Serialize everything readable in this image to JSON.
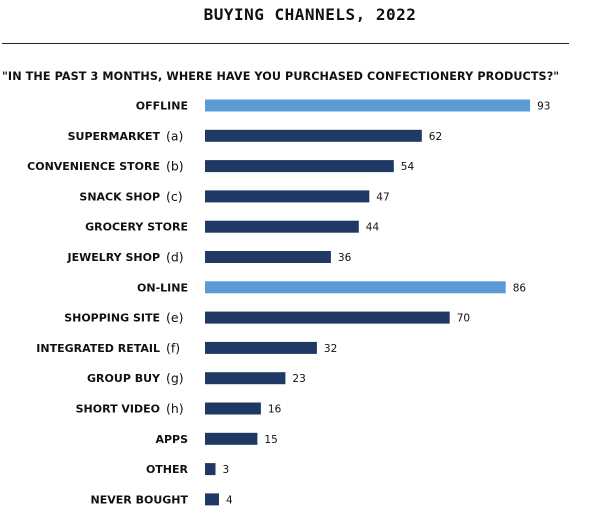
{
  "chart_data": {
    "type": "bar",
    "orientation": "horizontal",
    "title": "BUYING CHANNELS, 2022",
    "subtitle": "\"IN THE PAST 3 MONTHS, WHERE HAVE YOU PURCHASED CONFECTIONERY PRODUCTS?\"",
    "xlim": [
      0,
      100
    ],
    "grid": false,
    "colors": {
      "highlight": "#5b9bd5",
      "default": "#1f3864"
    },
    "categories": [
      {
        "label": "OFFLINE",
        "note": "",
        "value": 93,
        "highlight": true
      },
      {
        "label": "SUPERMARKET",
        "note": "(a)",
        "value": 62,
        "highlight": false
      },
      {
        "label": "CONVENIENCE STORE",
        "note": "(b)",
        "value": 54,
        "highlight": false
      },
      {
        "label": "SNACK SHOP",
        "note": "(c)",
        "value": 47,
        "highlight": false
      },
      {
        "label": "GROCERY STORE",
        "note": "",
        "value": 44,
        "highlight": false
      },
      {
        "label": "JEWELRY SHOP",
        "note": "(d)",
        "value": 36,
        "highlight": false
      },
      {
        "label": "ON-LINE",
        "note": "",
        "value": 86,
        "highlight": true
      },
      {
        "label": "SHOPPING SITE",
        "note": "(e)",
        "value": 70,
        "highlight": false
      },
      {
        "label": "INTEGRATED RETAIL",
        "note": "(f)",
        "value": 32,
        "highlight": false
      },
      {
        "label": "GROUP BUY",
        "note": "(g)",
        "value": 23,
        "highlight": false
      },
      {
        "label": "SHORT VIDEO",
        "note": "(h)",
        "value": 16,
        "highlight": false
      },
      {
        "label": "APPS",
        "note": "",
        "value": 15,
        "highlight": false
      },
      {
        "label": "OTHER",
        "note": "",
        "value": 3,
        "highlight": false
      },
      {
        "label": "NEVER BOUGHT",
        "note": "",
        "value": 4,
        "highlight": false
      }
    ]
  }
}
